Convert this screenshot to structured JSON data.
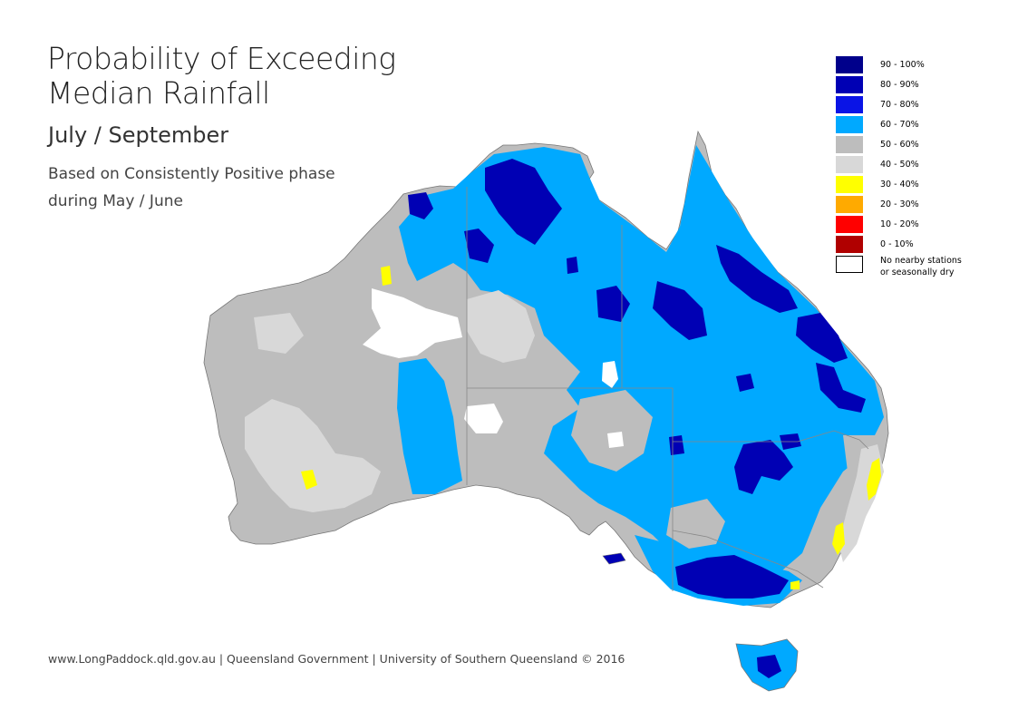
{
  "header": {
    "title_line1": "Probability of Exceeding",
    "title_line2": "Median Rainfall",
    "period": "July / September",
    "phase_line1": "Based on Consistently Positive phase",
    "phase_line2": "during May / June"
  },
  "legend": {
    "items": [
      {
        "label": "90 - 100%",
        "color": "#00008b"
      },
      {
        "label": "80 - 90%",
        "color": "#0000b4"
      },
      {
        "label": "70 - 80%",
        "color": "#0a14e6"
      },
      {
        "label": "60 - 70%",
        "color": "#00a9ff"
      },
      {
        "label": "50 - 60%",
        "color": "#bdbdbd"
      },
      {
        "label": "40 - 50%",
        "color": "#d8d8d8"
      },
      {
        "label": "30 - 40%",
        "color": "#ffff00"
      },
      {
        "label": "20 - 30%",
        "color": "#ffaa00"
      },
      {
        "label": "10 - 20%",
        "color": "#ff0000"
      },
      {
        "label": "0 - 10%",
        "color": "#b00000"
      }
    ],
    "no_data_line1": "No nearby stations",
    "no_data_line2": "or seasonally dry",
    "no_data_color": "#ffffff"
  },
  "footer": {
    "credit": "www.LongPaddock.qld.gov.au | Queensland Government | University of Southern Queensland © 2016"
  }
}
